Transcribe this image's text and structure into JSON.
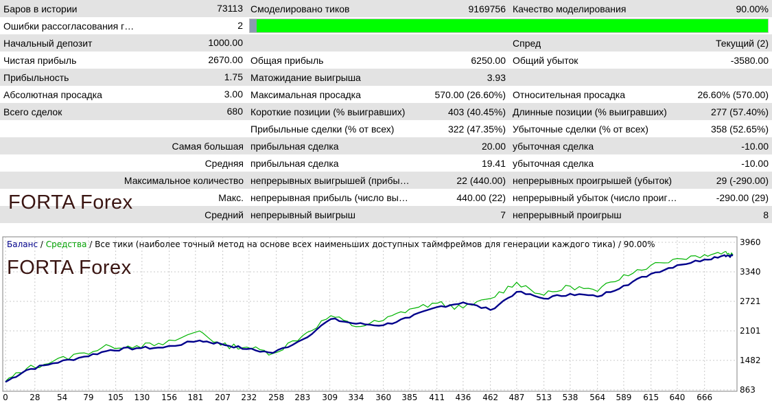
{
  "report": {
    "rows": [
      {
        "shade": true,
        "cells": [
          "Баров в истории",
          "73113",
          "Смоделировано тиков",
          "9169756",
          "Качество моделирования",
          "90.00%"
        ]
      },
      {
        "shade": false,
        "bar": true,
        "cells": [
          "Ошибки рассогласования графиков",
          "2"
        ]
      },
      {
        "shade": true,
        "cells": [
          "Начальный депозит",
          "1000.00",
          "",
          "",
          "Спред",
          "Текущий (2)"
        ]
      },
      {
        "shade": false,
        "cells": [
          "Чистая прибыль",
          "2670.00",
          "Общая прибыль",
          "6250.00",
          "Общий убыток",
          "-3580.00"
        ]
      },
      {
        "shade": true,
        "cells": [
          "Прибыльность",
          "1.75",
          "Матожидание выигрыша",
          "3.93",
          "",
          ""
        ]
      },
      {
        "shade": false,
        "cells": [
          "Абсолютная просадка",
          "3.00",
          "Максимальная просадка",
          "570.00 (26.60%)",
          "Относительная просадка",
          "26.60% (570.00)"
        ]
      },
      {
        "shade": true,
        "cells": [
          "Всего сделок",
          "680",
          "Короткие позиции (% выигравших)",
          "403 (40.45%)",
          "Длинные позиции (% выигравших)",
          "277 (57.40%)"
        ]
      },
      {
        "shade": false,
        "cells": [
          "",
          "",
          "Прибыльные сделки (% от всех)",
          "322 (47.35%)",
          "Убыточные сделки (% от всех)",
          "358 (52.65%)"
        ]
      },
      {
        "shade": true,
        "firstRight": true,
        "cells": [
          "Самая большая",
          "",
          "прибыльная сделка",
          "20.00",
          "убыточная сделка",
          "-10.00"
        ]
      },
      {
        "shade": false,
        "firstRight": true,
        "cells": [
          "Средняя",
          "",
          "прибыльная сделка",
          "19.41",
          "убыточная сделка",
          "-10.00"
        ]
      },
      {
        "shade": true,
        "firstRight": true,
        "cells": [
          "Максимальное количество",
          "",
          "непрерывных выигрышей (прибыль)",
          "22 (440.00)",
          "непрерывных проигрышей (убыток)",
          "29 (-290.00)"
        ]
      },
      {
        "shade": false,
        "firstRight": true,
        "cells": [
          "Макс.",
          "",
          "непрерывная прибыль (число выигрышей)",
          "440.00 (22)",
          "непрерывный убыток (число проигрышей)",
          "-290.00 (29)"
        ]
      },
      {
        "shade": true,
        "firstRight": true,
        "cells": [
          "Средний",
          "",
          "непрерывный выигрыш",
          "7",
          "непрерывный проигрыш",
          "8"
        ]
      }
    ],
    "quality_pct": 90
  },
  "watermark": "FORTA Forex",
  "chart_data": {
    "type": "line",
    "legend": {
      "balance": "Баланс",
      "sep1": " / ",
      "equity": "Средства",
      "sep2": " / ",
      "rest": "Все тики (наиболее точный метод на основе всех наименьших доступных таймфреймов для генерации каждого тика) / 90.00%"
    },
    "x_ticks": [
      0,
      28,
      54,
      79,
      105,
      130,
      156,
      181,
      207,
      232,
      258,
      283,
      309,
      334,
      360,
      385,
      411,
      436,
      462,
      487,
      513,
      538,
      564,
      589,
      615,
      640,
      666
    ],
    "y_ticks": [
      3960,
      3340,
      2721,
      2101,
      1482,
      863
    ],
    "xlim": [
      0,
      693
    ],
    "ylim": [
      863,
      3960
    ],
    "colors": {
      "balance": "#00008b",
      "equity": "#00b400",
      "grid": "#c8c8c8"
    },
    "series": [
      {
        "name": "Баланс",
        "points": [
          [
            0,
            1030
          ],
          [
            20,
            1280
          ],
          [
            45,
            1420
          ],
          [
            75,
            1560
          ],
          [
            100,
            1700
          ],
          [
            125,
            1740
          ],
          [
            150,
            1750
          ],
          [
            185,
            1900
          ],
          [
            205,
            1830
          ],
          [
            230,
            1720
          ],
          [
            255,
            1640
          ],
          [
            283,
            1920
          ],
          [
            310,
            2350
          ],
          [
            334,
            2250
          ],
          [
            360,
            2220
          ],
          [
            385,
            2380
          ],
          [
            411,
            2600
          ],
          [
            436,
            2700
          ],
          [
            462,
            2540
          ],
          [
            487,
            2920
          ],
          [
            513,
            2780
          ],
          [
            538,
            2880
          ],
          [
            564,
            2820
          ],
          [
            589,
            3050
          ],
          [
            615,
            3300
          ],
          [
            640,
            3480
          ],
          [
            666,
            3600
          ],
          [
            685,
            3690
          ],
          [
            693,
            3680
          ]
        ]
      },
      {
        "name": "Средства",
        "points": [
          [
            0,
            1040
          ],
          [
            20,
            1310
          ],
          [
            45,
            1460
          ],
          [
            75,
            1640
          ],
          [
            100,
            1780
          ],
          [
            125,
            1790
          ],
          [
            150,
            1810
          ],
          [
            185,
            2100
          ],
          [
            205,
            1800
          ],
          [
            230,
            1760
          ],
          [
            255,
            1630
          ],
          [
            283,
            2000
          ],
          [
            310,
            2420
          ],
          [
            334,
            2190
          ],
          [
            360,
            2320
          ],
          [
            385,
            2560
          ],
          [
            411,
            2680
          ],
          [
            436,
            2580
          ],
          [
            462,
            2780
          ],
          [
            487,
            3120
          ],
          [
            513,
            2850
          ],
          [
            538,
            3040
          ],
          [
            564,
            2930
          ],
          [
            589,
            3280
          ],
          [
            615,
            3480
          ],
          [
            640,
            3620
          ],
          [
            666,
            3700
          ],
          [
            685,
            3760
          ],
          [
            693,
            3700
          ]
        ]
      }
    ]
  }
}
